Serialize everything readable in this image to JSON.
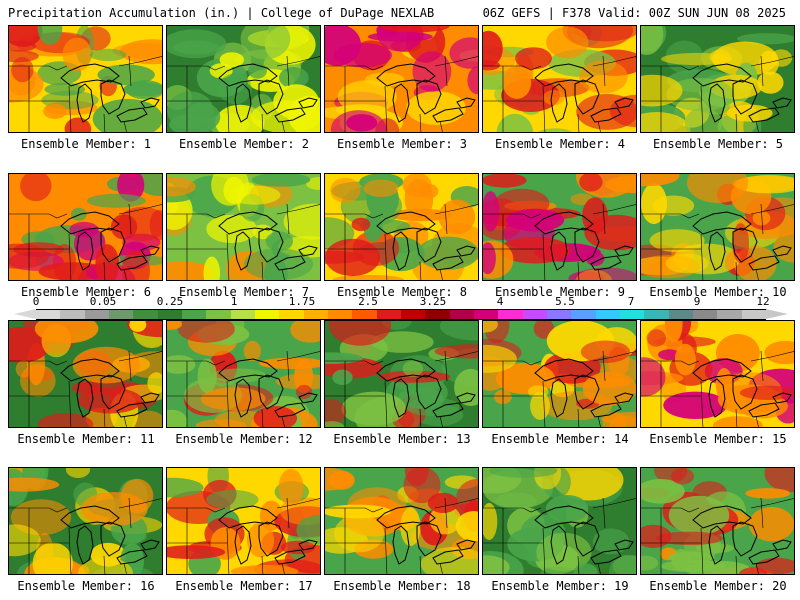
{
  "header": {
    "left": "Precipitation Accumulation (in.) | College of DuPage NEXLAB",
    "right": "06Z GEFS | F378 Valid: 00Z SUN JUN 08 2025"
  },
  "colorbar": {
    "tick_labels": [
      "0",
      "0.05",
      "0.25",
      "1",
      "1.75",
      "2.5",
      "3.25",
      "4",
      "5.5",
      "7",
      "9",
      "12"
    ],
    "colors": [
      "#d8d8d8",
      "#bcbcbc",
      "#9a9a9a",
      "#6c9a6c",
      "#3f8f3f",
      "#2f7d2f",
      "#4aa54a",
      "#7cc142",
      "#b5e04a",
      "#f0f500",
      "#ffd800",
      "#ffb000",
      "#ff8c00",
      "#ff5a00",
      "#e01b1b",
      "#c00000",
      "#8e0000",
      "#b0004a",
      "#d4007a",
      "#ff2bd6",
      "#c74bff",
      "#8a78ff",
      "#5aa0ff",
      "#36c9ff",
      "#22e0e0",
      "#39b6b6",
      "#5c8a8a",
      "#8a8a8a",
      "#a8a8a8",
      "#c8c8c8"
    ]
  },
  "panels": [
    {
      "label": "Ensemble Member: 1",
      "palette": [
        "#ffd800",
        "#ff8c00",
        "#e01b1b",
        "#4aa54a"
      ]
    },
    {
      "label": "Ensemble Member: 2",
      "palette": [
        "#2f7d2f",
        "#4aa54a",
        "#7cc142",
        "#f0f500"
      ]
    },
    {
      "label": "Ensemble Member: 3",
      "palette": [
        "#ff8c00",
        "#e01b1b",
        "#d4007a",
        "#ffd800"
      ]
    },
    {
      "label": "Ensemble Member: 4",
      "palette": [
        "#ffd800",
        "#ff8c00",
        "#e01b1b",
        "#7cc142"
      ]
    },
    {
      "label": "Ensemble Member: 5",
      "palette": [
        "#2f7d2f",
        "#4aa54a",
        "#7cc142",
        "#ffd800"
      ]
    },
    {
      "label": "Ensemble Member: 6",
      "palette": [
        "#ff8c00",
        "#e01b1b",
        "#d4007a",
        "#4aa54a"
      ]
    },
    {
      "label": "Ensemble Member: 7",
      "palette": [
        "#7cc142",
        "#4aa54a",
        "#f0f500",
        "#ff8c00"
      ]
    },
    {
      "label": "Ensemble Member: 8",
      "palette": [
        "#ffd800",
        "#ff8c00",
        "#e01b1b",
        "#4aa54a"
      ]
    },
    {
      "label": "Ensemble Member: 9",
      "palette": [
        "#4aa54a",
        "#ff8c00",
        "#e01b1b",
        "#d4007a"
      ]
    },
    {
      "label": "Ensemble Member: 10",
      "palette": [
        "#4aa54a",
        "#ffd800",
        "#ff8c00",
        "#e01b1b"
      ]
    },
    {
      "label": "Ensemble Member: 11",
      "palette": [
        "#2f7d2f",
        "#ffd800",
        "#ff8c00",
        "#e01b1b"
      ]
    },
    {
      "label": "Ensemble Member: 12",
      "palette": [
        "#4aa54a",
        "#7cc142",
        "#ff8c00",
        "#e01b1b"
      ]
    },
    {
      "label": "Ensemble Member: 13",
      "palette": [
        "#2f7d2f",
        "#4aa54a",
        "#7cc142",
        "#e01b1b"
      ]
    },
    {
      "label": "Ensemble Member: 14",
      "palette": [
        "#4aa54a",
        "#ffd800",
        "#ff8c00",
        "#e01b1b"
      ]
    },
    {
      "label": "Ensemble Member: 15",
      "palette": [
        "#ffd800",
        "#ff8c00",
        "#e01b1b",
        "#d4007a"
      ]
    },
    {
      "label": "Ensemble Member: 16",
      "palette": [
        "#2f7d2f",
        "#4aa54a",
        "#ffd800",
        "#ff8c00"
      ]
    },
    {
      "label": "Ensemble Member: 17",
      "palette": [
        "#ffd800",
        "#ff8c00",
        "#e01b1b",
        "#4aa54a"
      ]
    },
    {
      "label": "Ensemble Member: 18",
      "palette": [
        "#4aa54a",
        "#ffd800",
        "#ff8c00",
        "#e01b1b"
      ]
    },
    {
      "label": "Ensemble Member: 19",
      "palette": [
        "#2f7d2f",
        "#4aa54a",
        "#7cc142",
        "#ffd800"
      ]
    },
    {
      "label": "Ensemble Member: 20",
      "palette": [
        "#4aa54a",
        "#7cc142",
        "#ff8c00",
        "#e01b1b"
      ]
    }
  ]
}
